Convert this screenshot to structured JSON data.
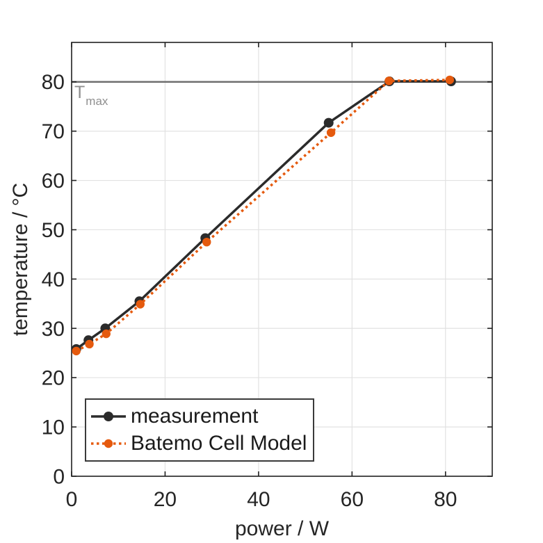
{
  "chart_data": {
    "type": "line",
    "title": "",
    "xlabel": "power / W",
    "ylabel": "temperature / °C",
    "xlim": [
      0,
      90
    ],
    "ylim": [
      0,
      88
    ],
    "xticks": [
      0,
      20,
      40,
      60,
      80
    ],
    "yticks": [
      0,
      10,
      20,
      30,
      40,
      50,
      60,
      70,
      80
    ],
    "grid": true,
    "legend_position": "lower-left-inside",
    "series": [
      {
        "name": "measurement",
        "color": "#2b2b2b",
        "line_style": "solid",
        "marker": "circle",
        "marker_radius": 7,
        "x": [
          1,
          3.6,
          7.2,
          14.5,
          28.6,
          55,
          68,
          81.2
        ],
        "y": [
          25.8,
          27.6,
          30.0,
          35.5,
          48.3,
          71.7,
          80.1,
          80.1
        ]
      },
      {
        "name": "Batemo Cell Model",
        "color": "#e55a0e",
        "line_style": "dotted",
        "marker": "circle",
        "marker_radius": 6.2,
        "x": [
          1,
          3.8,
          7.4,
          14.7,
          28.9,
          55.5,
          67.9,
          80.9
        ],
        "y": [
          25.4,
          26.8,
          28.9,
          34.9,
          47.5,
          69.7,
          80.2,
          80.4
        ]
      }
    ],
    "reference_line": {
      "value": 80,
      "label": "T",
      "label_subscript": "max",
      "color": "#6f6f6f"
    }
  },
  "colors": {
    "background": "#ffffff",
    "grid": "#e2e2e2",
    "axis_box": "#202020",
    "tick_text": "#252525",
    "tmax_line": "#6f6f6f",
    "tmax_label": "#8f8f8f",
    "legend_border": "#3a3a3a"
  }
}
